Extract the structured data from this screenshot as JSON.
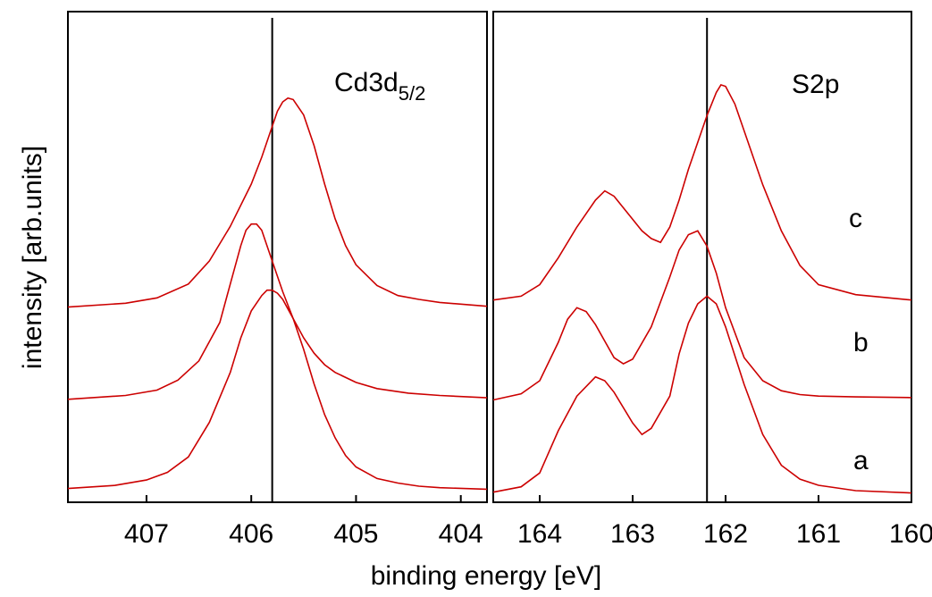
{
  "chart_data": {
    "type": "line",
    "xlabel": "binding energy [eV]",
    "ylabel": "intensity [arb.units]",
    "x_axis_reversed": true,
    "line_color": "#cc0000",
    "panels": [
      {
        "label_main": "Cd3d",
        "label_sub": "5/2",
        "xlim": [
          407.75,
          403.75
        ],
        "xticks": [
          407,
          406,
          405,
          404
        ],
        "reference_line": 405.8,
        "series": [
          {
            "name": "a",
            "x": [
              407.75,
              407.3,
              407.0,
              406.8,
              406.6,
              406.4,
              406.2,
              406.1,
              406.0,
              405.9,
              405.85,
              405.8,
              405.75,
              405.7,
              405.6,
              405.5,
              405.4,
              405.3,
              405.2,
              405.1,
              405.0,
              404.8,
              404.6,
              404.4,
              404.2,
              403.75
            ],
            "y": [
              0.04,
              0.08,
              0.15,
              0.25,
              0.45,
              0.9,
              1.55,
              2.0,
              2.35,
              2.55,
              2.62,
              2.62,
              2.58,
              2.5,
              2.25,
              1.85,
              1.4,
              1.0,
              0.7,
              0.47,
              0.32,
              0.17,
              0.11,
              0.07,
              0.05,
              0.03
            ]
          },
          {
            "name": "b",
            "x": [
              407.75,
              407.2,
              406.9,
              406.7,
              406.5,
              406.3,
              406.2,
              406.1,
              406.05,
              406.0,
              405.95,
              405.9,
              405.8,
              405.7,
              405.6,
              405.5,
              405.4,
              405.3,
              405.2,
              405.0,
              404.8,
              404.5,
              404.2,
              403.75
            ],
            "y": [
              0.0,
              0.05,
              0.12,
              0.25,
              0.5,
              1.0,
              1.5,
              2.0,
              2.2,
              2.28,
              2.28,
              2.2,
              1.8,
              1.4,
              1.05,
              0.8,
              0.6,
              0.45,
              0.35,
              0.22,
              0.14,
              0.08,
              0.05,
              0.02
            ]
          },
          {
            "name": "c",
            "x": [
              407.75,
              407.2,
              406.9,
              406.6,
              406.4,
              406.2,
              406.0,
              405.9,
              405.8,
              405.75,
              405.7,
              405.65,
              405.6,
              405.5,
              405.4,
              405.3,
              405.2,
              405.1,
              405.0,
              404.8,
              404.6,
              404.4,
              404.2,
              403.75
            ],
            "y": [
              0.0,
              0.05,
              0.12,
              0.3,
              0.6,
              1.05,
              1.6,
              1.95,
              2.35,
              2.55,
              2.67,
              2.72,
              2.7,
              2.5,
              2.1,
              1.6,
              1.15,
              0.8,
              0.55,
              0.28,
              0.15,
              0.1,
              0.06,
              0.01
            ]
          }
        ]
      },
      {
        "label_main": "S2p",
        "label_sub": "",
        "xlim": [
          164.5,
          160.0
        ],
        "xticks": [
          164,
          163,
          162,
          161,
          160
        ],
        "reference_line": 162.2,
        "series": [
          {
            "name": "a",
            "x": [
              164.5,
              164.2,
              164.0,
              163.8,
              163.6,
              163.4,
              163.3,
              163.2,
              163.0,
              162.9,
              162.8,
              162.6,
              162.5,
              162.4,
              162.3,
              162.2,
              162.1,
              162.0,
              161.8,
              161.6,
              161.4,
              161.2,
              161.0,
              160.6,
              160.0
            ],
            "y": [
              0.05,
              0.12,
              0.3,
              0.85,
              1.3,
              1.55,
              1.5,
              1.35,
              0.95,
              0.8,
              0.88,
              1.3,
              1.85,
              2.25,
              2.5,
              2.6,
              2.5,
              2.2,
              1.45,
              0.8,
              0.4,
              0.22,
              0.14,
              0.07,
              0.04
            ]
          },
          {
            "name": "b",
            "x": [
              164.5,
              164.2,
              164.0,
              163.8,
              163.7,
              163.6,
              163.5,
              163.4,
              163.2,
              163.1,
              163.0,
              162.8,
              162.6,
              162.5,
              162.4,
              162.3,
              162.2,
              162.1,
              162.0,
              161.8,
              161.6,
              161.4,
              161.2,
              161.0,
              160.6,
              160.0
            ],
            "y": [
              0.0,
              0.08,
              0.25,
              0.75,
              1.05,
              1.2,
              1.15,
              0.98,
              0.55,
              0.47,
              0.53,
              0.95,
              1.6,
              1.95,
              2.15,
              2.2,
              2.0,
              1.65,
              1.2,
              0.55,
              0.25,
              0.12,
              0.07,
              0.05,
              0.04,
              0.03
            ]
          },
          {
            "name": "c",
            "x": [
              164.5,
              164.2,
              164.0,
              163.8,
              163.6,
              163.4,
              163.3,
              163.2,
              163.1,
              163.0,
              162.9,
              162.8,
              162.7,
              162.6,
              162.5,
              162.4,
              162.3,
              162.2,
              162.1,
              162.05,
              162.0,
              161.9,
              161.8,
              161.6,
              161.4,
              161.2,
              161.0,
              160.6,
              160.0
            ],
            "y": [
              0.0,
              0.05,
              0.2,
              0.55,
              0.95,
              1.3,
              1.42,
              1.35,
              1.2,
              1.05,
              0.9,
              0.8,
              0.75,
              0.95,
              1.3,
              1.7,
              2.05,
              2.4,
              2.7,
              2.8,
              2.78,
              2.55,
              2.2,
              1.5,
              0.9,
              0.45,
              0.2,
              0.07,
              0.0
            ]
          }
        ]
      }
    ]
  }
}
